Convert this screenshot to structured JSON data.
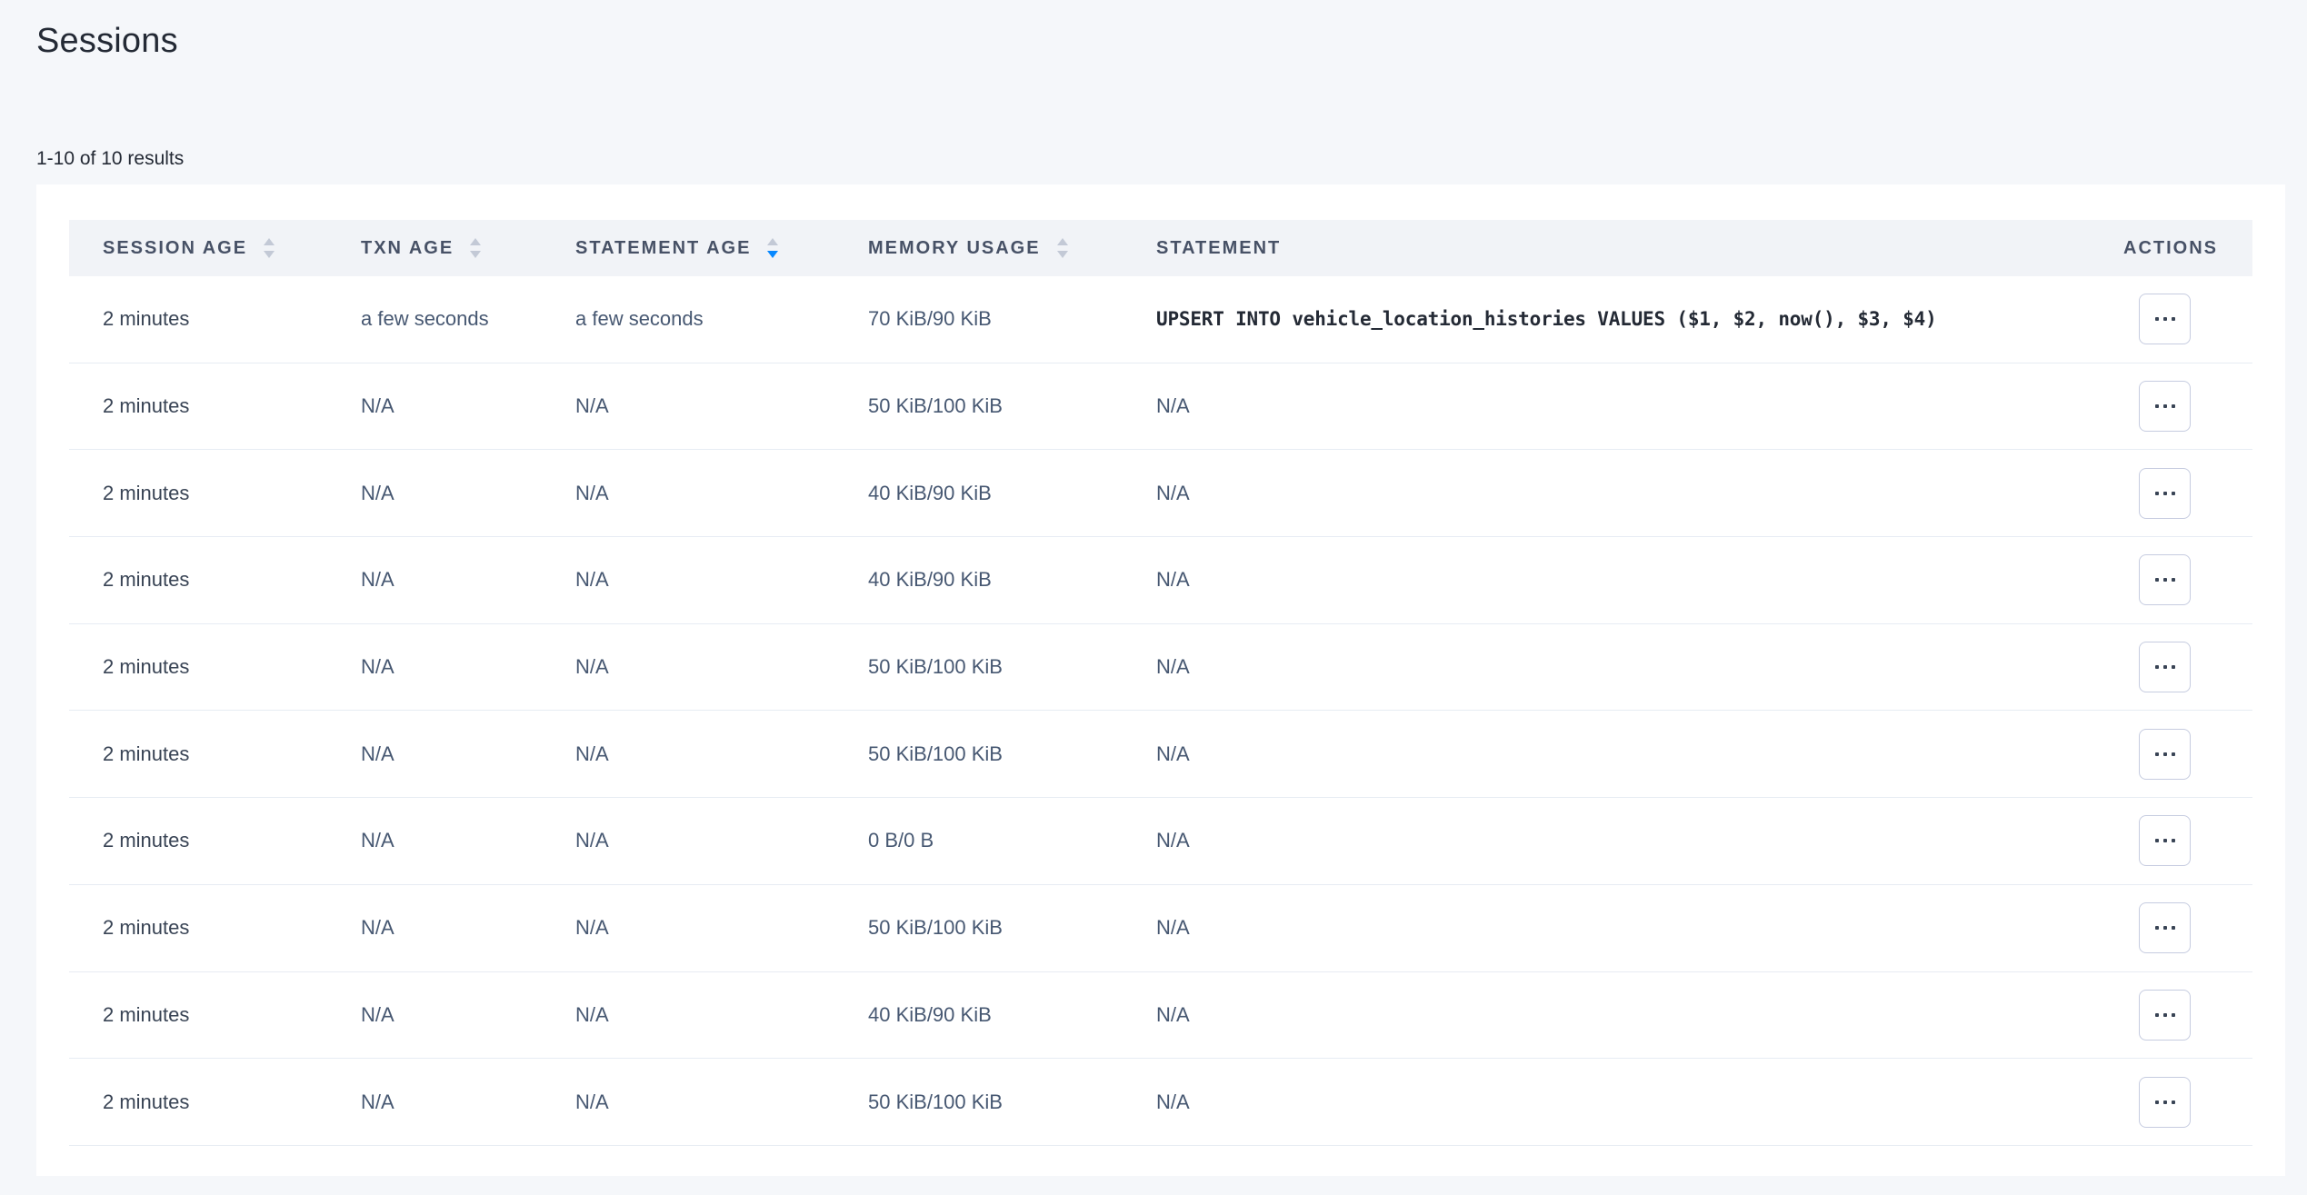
{
  "page": {
    "title": "Sessions",
    "results_summary": "1-10 of 10 results"
  },
  "colors": {
    "sort_active": "#0788ff",
    "header_text": "#475166",
    "body_text": "#475872",
    "page_background": "#f5f7fa"
  },
  "table": {
    "columns": [
      {
        "key": "session_age",
        "label": "SESSION AGE",
        "sortable": true,
        "sort": "none"
      },
      {
        "key": "txn_age",
        "label": "TXN AGE",
        "sortable": true,
        "sort": "none"
      },
      {
        "key": "statement_age",
        "label": "STATEMENT AGE",
        "sortable": true,
        "sort": "desc"
      },
      {
        "key": "memory_usage",
        "label": "MEMORY USAGE",
        "sortable": true,
        "sort": "none"
      },
      {
        "key": "statement",
        "label": "STATEMENT",
        "sortable": false,
        "sort": "none"
      },
      {
        "key": "actions",
        "label": "ACTIONS",
        "sortable": false,
        "sort": "none"
      }
    ],
    "rows": [
      {
        "session_age": "2 minutes",
        "txn_age": "a few seconds",
        "statement_age": "a few seconds",
        "memory_usage": "70 KiB/90 KiB",
        "statement": "UPSERT INTO vehicle_location_histories VALUES ($1, $2, now(), $3, $4)",
        "statement_is_sql": true
      },
      {
        "session_age": "2 minutes",
        "txn_age": "N/A",
        "statement_age": "N/A",
        "memory_usage": "50 KiB/100 KiB",
        "statement": "N/A",
        "statement_is_sql": false
      },
      {
        "session_age": "2 minutes",
        "txn_age": "N/A",
        "statement_age": "N/A",
        "memory_usage": "40 KiB/90 KiB",
        "statement": "N/A",
        "statement_is_sql": false
      },
      {
        "session_age": "2 minutes",
        "txn_age": "N/A",
        "statement_age": "N/A",
        "memory_usage": "40 KiB/90 KiB",
        "statement": "N/A",
        "statement_is_sql": false
      },
      {
        "session_age": "2 minutes",
        "txn_age": "N/A",
        "statement_age": "N/A",
        "memory_usage": "50 KiB/100 KiB",
        "statement": "N/A",
        "statement_is_sql": false
      },
      {
        "session_age": "2 minutes",
        "txn_age": "N/A",
        "statement_age": "N/A",
        "memory_usage": "50 KiB/100 KiB",
        "statement": "N/A",
        "statement_is_sql": false
      },
      {
        "session_age": "2 minutes",
        "txn_age": "N/A",
        "statement_age": "N/A",
        "memory_usage": "0 B/0 B",
        "statement": "N/A",
        "statement_is_sql": false
      },
      {
        "session_age": "2 minutes",
        "txn_age": "N/A",
        "statement_age": "N/A",
        "memory_usage": "50 KiB/100 KiB",
        "statement": "N/A",
        "statement_is_sql": false
      },
      {
        "session_age": "2 minutes",
        "txn_age": "N/A",
        "statement_age": "N/A",
        "memory_usage": "40 KiB/90 KiB",
        "statement": "N/A",
        "statement_is_sql": false
      },
      {
        "session_age": "2 minutes",
        "txn_age": "N/A",
        "statement_age": "N/A",
        "memory_usage": "50 KiB/100 KiB",
        "statement": "N/A",
        "statement_is_sql": false
      }
    ]
  }
}
